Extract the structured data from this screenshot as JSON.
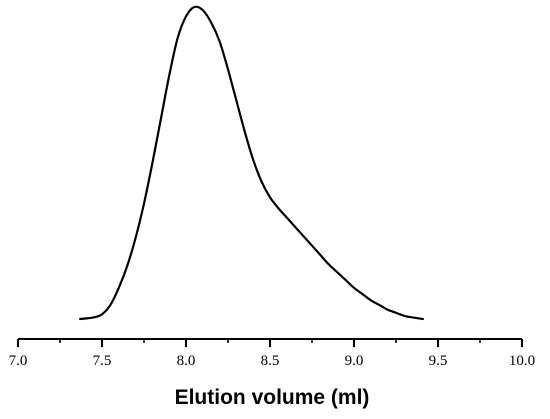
{
  "chart_data": {
    "type": "line",
    "title": "",
    "xlabel": "Elution volume (ml)",
    "ylabel": "",
    "xlim": [
      7.0,
      10.0
    ],
    "ylim": [
      0,
      1
    ],
    "x_ticks": [
      "7.0",
      "7.5",
      "8.0",
      "8.5",
      "9.0",
      "9.5",
      "10.0"
    ],
    "y_axis_shown": false,
    "grid": false,
    "legend": "none",
    "line_color": "#000000",
    "series": [
      {
        "x": [
          7.37,
          7.45,
          7.5,
          7.55,
          7.6,
          7.65,
          7.7,
          7.75,
          7.8,
          7.85,
          7.9,
          7.95,
          8.0,
          8.05,
          8.1,
          8.15,
          8.2,
          8.25,
          8.3,
          8.35,
          8.4,
          8.45,
          8.5,
          8.55,
          8.6,
          8.65,
          8.7,
          8.75,
          8.8,
          8.85,
          8.9,
          8.95,
          9.0,
          9.05,
          9.1,
          9.15,
          9.2,
          9.25,
          9.3,
          9.35,
          9.41
        ],
        "y": [
          0.0,
          0.005,
          0.015,
          0.045,
          0.1,
          0.17,
          0.26,
          0.37,
          0.5,
          0.64,
          0.78,
          0.9,
          0.97,
          1.0,
          0.99,
          0.95,
          0.89,
          0.8,
          0.7,
          0.6,
          0.51,
          0.44,
          0.39,
          0.355,
          0.325,
          0.295,
          0.265,
          0.235,
          0.205,
          0.175,
          0.15,
          0.125,
          0.1,
          0.08,
          0.06,
          0.045,
          0.03,
          0.02,
          0.01,
          0.005,
          0.0
        ]
      }
    ]
  }
}
